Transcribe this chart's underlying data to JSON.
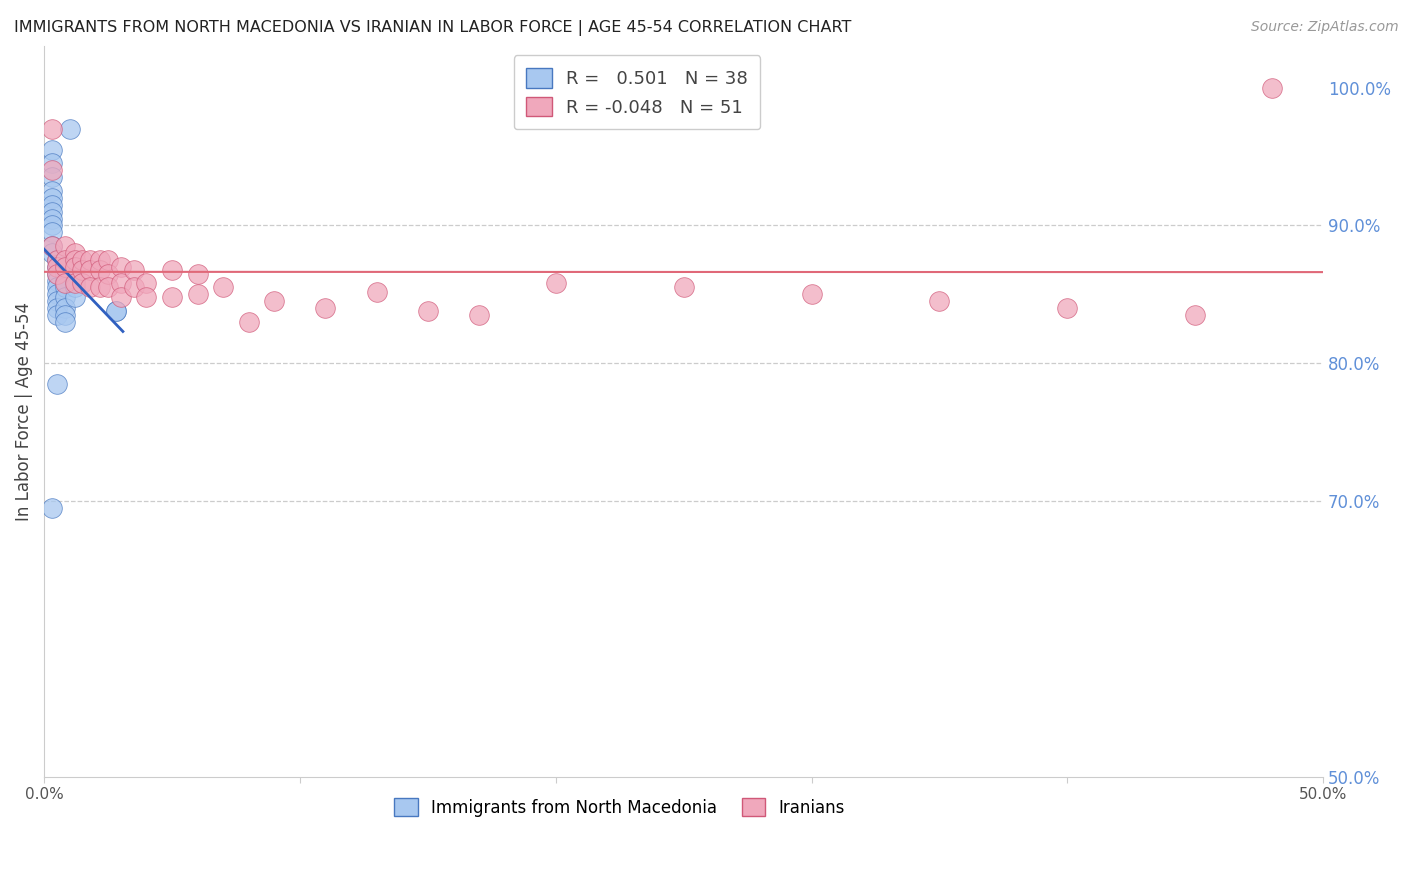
{
  "title": "IMMIGRANTS FROM NORTH MACEDONIA VS IRANIAN IN LABOR FORCE | AGE 45-54 CORRELATION CHART",
  "source": "Source: ZipAtlas.com",
  "ylabel": "In Labor Force | Age 45-54",
  "blue_R": "0.501",
  "blue_N": "38",
  "pink_R": "-0.048",
  "pink_N": "51",
  "blue_color": "#a8c8f0",
  "pink_color": "#f0a8bc",
  "blue_edge_color": "#4878c0",
  "pink_edge_color": "#d05878",
  "blue_line_color": "#3060c0",
  "pink_line_color": "#e06878",
  "legend_label_blue": "Immigrants from North Macedonia",
  "legend_label_pink": "Iranians",
  "right_axis_color": "#6090d8",
  "grid_color": "#cccccc",
  "xlim": [
    0.0,
    0.5
  ],
  "ylim": [
    0.5,
    1.03
  ],
  "blue_x": [
    0.01,
    0.003,
    0.003,
    0.003,
    0.003,
    0.003,
    0.003,
    0.003,
    0.003,
    0.003,
    0.003,
    0.003,
    0.003,
    0.005,
    0.005,
    0.005,
    0.005,
    0.005,
    0.005,
    0.005,
    0.005,
    0.005,
    0.008,
    0.008,
    0.008,
    0.008,
    0.008,
    0.008,
    0.008,
    0.008,
    0.012,
    0.012,
    0.012,
    0.012,
    0.028,
    0.028,
    0.005,
    0.003
  ],
  "blue_y": [
    0.97,
    0.955,
    0.945,
    0.935,
    0.925,
    0.92,
    0.915,
    0.91,
    0.905,
    0.9,
    0.895,
    0.885,
    0.88,
    0.875,
    0.87,
    0.865,
    0.86,
    0.855,
    0.85,
    0.845,
    0.84,
    0.835,
    0.87,
    0.865,
    0.86,
    0.855,
    0.848,
    0.84,
    0.835,
    0.83,
    0.87,
    0.86,
    0.855,
    0.848,
    0.838,
    0.838,
    0.785,
    0.695
  ],
  "pink_x": [
    0.003,
    0.003,
    0.003,
    0.005,
    0.005,
    0.005,
    0.008,
    0.008,
    0.008,
    0.008,
    0.012,
    0.012,
    0.012,
    0.012,
    0.015,
    0.015,
    0.015,
    0.018,
    0.018,
    0.018,
    0.022,
    0.022,
    0.022,
    0.025,
    0.025,
    0.025,
    0.03,
    0.03,
    0.03,
    0.035,
    0.035,
    0.04,
    0.04,
    0.05,
    0.05,
    0.06,
    0.06,
    0.07,
    0.08,
    0.09,
    0.11,
    0.13,
    0.15,
    0.17,
    0.2,
    0.25,
    0.3,
    0.35,
    0.4,
    0.45,
    0.48
  ],
  "pink_y": [
    0.97,
    0.94,
    0.885,
    0.875,
    0.87,
    0.865,
    0.885,
    0.875,
    0.87,
    0.858,
    0.88,
    0.875,
    0.87,
    0.858,
    0.875,
    0.868,
    0.858,
    0.875,
    0.868,
    0.855,
    0.875,
    0.868,
    0.855,
    0.875,
    0.865,
    0.855,
    0.87,
    0.858,
    0.848,
    0.868,
    0.855,
    0.858,
    0.848,
    0.868,
    0.848,
    0.865,
    0.85,
    0.855,
    0.83,
    0.845,
    0.84,
    0.852,
    0.838,
    0.835,
    0.858,
    0.855,
    0.85,
    0.845,
    0.84,
    0.835,
    1.0
  ],
  "right_ytick_vals": [
    1.0,
    0.9,
    0.8,
    0.7,
    0.5
  ],
  "right_ytick_labels": [
    "100.0%",
    "90.0%",
    "80.0%",
    "70.0%",
    "50.0%"
  ],
  "hgrid_vals": [
    0.9,
    0.8,
    0.7
  ],
  "xtick_positions": [
    0.0,
    0.1,
    0.2,
    0.3,
    0.4,
    0.5
  ],
  "xtick_labels": [
    "0.0%",
    "",
    "",
    "",
    "",
    "50.0%"
  ]
}
